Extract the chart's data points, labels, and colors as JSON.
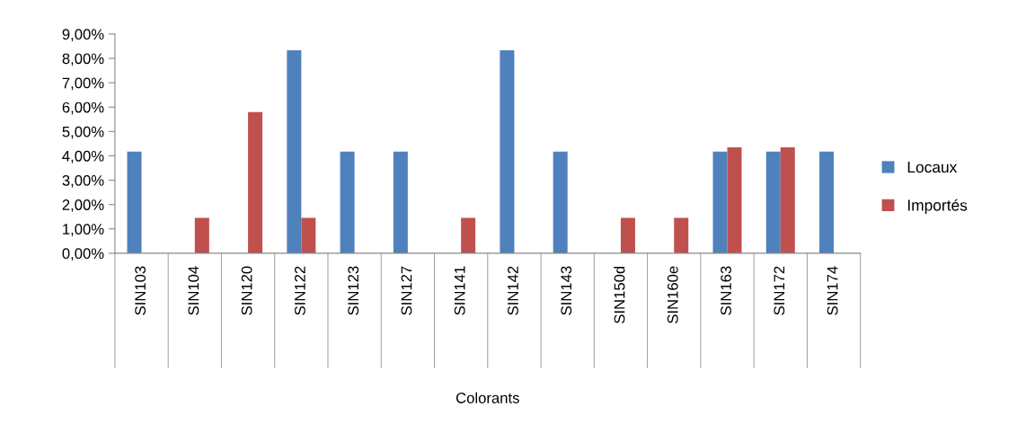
{
  "chart_data": {
    "type": "bar",
    "xlabel": "Colorants",
    "categories": [
      "SIN103",
      "SIN104",
      "SIN120",
      "SIN122",
      "SIN123",
      "SIN127",
      "SIN141",
      "SIN142",
      "SIN143",
      "SIN150d",
      "SIN160e",
      "SIN163",
      "SIN172",
      "SIN174"
    ],
    "series": [
      {
        "name": "Locaux",
        "color": "#4f81bd",
        "values": [
          4.17,
          0,
          0,
          8.33,
          4.17,
          4.17,
          0,
          8.33,
          4.17,
          0,
          0,
          4.17,
          4.17,
          4.17
        ]
      },
      {
        "name": "Importés",
        "color": "#c0504d",
        "values": [
          0,
          1.45,
          5.8,
          1.45,
          0,
          0,
          1.45,
          0,
          0,
          1.45,
          1.45,
          4.35,
          4.35,
          0
        ]
      }
    ],
    "ylim": [
      0,
      9
    ],
    "yticks": [
      {
        "value": 0,
        "label": "0,00%"
      },
      {
        "value": 1,
        "label": "1,00%"
      },
      {
        "value": 2,
        "label": "2,00%"
      },
      {
        "value": 3,
        "label": "3,00%"
      },
      {
        "value": 4,
        "label": "4,00%"
      },
      {
        "value": 5,
        "label": "5,00%"
      },
      {
        "value": 6,
        "label": "6,00%"
      },
      {
        "value": 7,
        "label": "7,00%"
      },
      {
        "value": 8,
        "label": "8,00%"
      },
      {
        "value": 9,
        "label": "9,00%"
      }
    ],
    "grid": false,
    "legend": "right"
  }
}
